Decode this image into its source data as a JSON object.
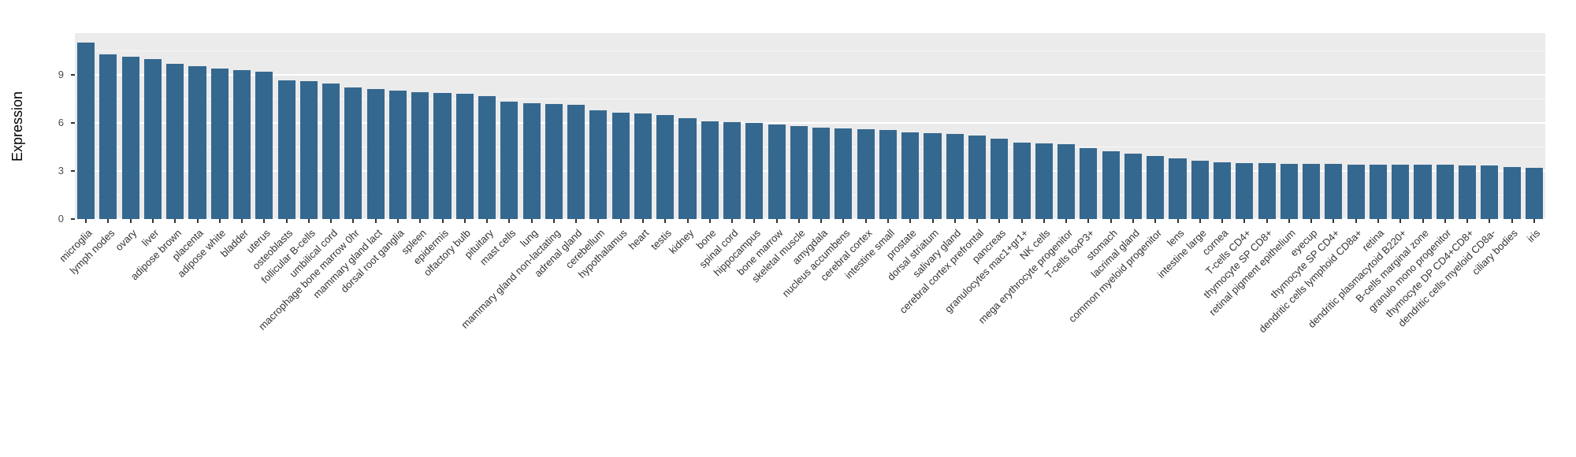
{
  "chart_data": {
    "type": "bar",
    "title": "",
    "xlabel": "",
    "ylabel": "Expression",
    "legend": "none",
    "grid": "on",
    "panel_background": "#EBEBEB",
    "grid_color": "#FFFFFF",
    "bar_color": "#35688F",
    "tick_color": "#333333",
    "ylim": [
      0,
      11.6
    ],
    "yticks": [
      0,
      3,
      6,
      9
    ],
    "yticks_minor": [
      1.5,
      4.5,
      7.5,
      10.5
    ],
    "categories": [
      "microglia",
      "lymph nodes",
      "ovary",
      "liver",
      "adipose brown",
      "placenta",
      "adipose white",
      "bladder",
      "uterus",
      "osteoblasts",
      "follicular B-cells",
      "umbilical cord",
      "macrophage bone marrow 0hr",
      "mammary gland lact",
      "dorsal root ganglia",
      "spleen",
      "epidermis",
      "olfactory bulb",
      "pituitary",
      "mast cells",
      "lung",
      "mammary gland non-lactating",
      "adrenal gland",
      "cerebellum",
      "hypothalamus",
      "heart",
      "testis",
      "kidney",
      "bone",
      "spinal cord",
      "hippocampus",
      "bone marrow",
      "skeletal muscle",
      "amygdala",
      "nucleus accumbens",
      "cerebral cortex",
      "intestine small",
      "prostate",
      "dorsal striatum",
      "salivary gland",
      "cerebral cortex prefrontal",
      "pancreas",
      "granulocytes mac1+gr1+",
      "NK cells",
      "mega erythrocyte progenitor",
      "T-cells foxP3+",
      "stomach",
      "lacrimal gland",
      "common myeloid progenitor",
      "lens",
      "intestine large",
      "cornea",
      "T-cells CD4+",
      "thymocyte SP CD8+",
      "retinal pigment epithelium",
      "eyecup",
      "thymocyte SP CD4+",
      "dendritic cells lymphoid CD8a+",
      "retina",
      "dendritic plasmacytoid B220+",
      "B-cells marginal zone",
      "granulo mono progenitor",
      "thymocyte DP CD4+CD8+",
      "dendritic cells myeloid CD8a-",
      "ciliary bodies",
      "iris"
    ],
    "values": [
      11.0,
      10.25,
      10.15,
      10.0,
      9.7,
      9.55,
      9.4,
      9.3,
      9.2,
      8.65,
      8.6,
      8.45,
      8.2,
      8.1,
      8.0,
      7.9,
      7.85,
      7.8,
      7.65,
      7.3,
      7.25,
      7.2,
      7.15,
      6.8,
      6.65,
      6.6,
      6.5,
      6.3,
      6.1,
      6.05,
      6.0,
      5.9,
      5.8,
      5.7,
      5.65,
      5.6,
      5.55,
      5.4,
      5.35,
      5.3,
      5.2,
      5.0,
      4.75,
      4.7,
      4.65,
      4.4,
      4.25,
      4.1,
      3.95,
      3.8,
      3.65,
      3.55,
      3.5,
      3.5,
      3.45,
      3.45,
      3.45,
      3.4,
      3.4,
      3.4,
      3.4,
      3.4,
      3.35,
      3.35,
      3.25,
      3.2
    ]
  }
}
